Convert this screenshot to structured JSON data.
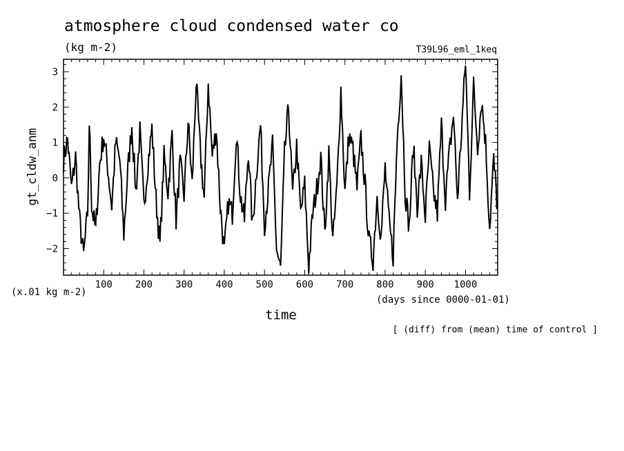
{
  "chart_data": {
    "type": "line",
    "title": "atmosphere cloud condensed water co",
    "units_label": "(kg m-2)",
    "run_label": "T39L96_eml_1keq",
    "xlabel": "time",
    "ylabel": "gt_cldw_anm",
    "y_scale_label": "(x.01 kg m-2)",
    "x_units_label": "(days since 0000-01-01)",
    "note": "[ (diff) from (mean) time of control ]",
    "xlim": [
      0,
      1080
    ],
    "ylim": [
      -2.75,
      3.35
    ],
    "x_ticks": [
      100,
      200,
      300,
      400,
      500,
      600,
      700,
      800,
      900,
      1000
    ],
    "y_ticks": [
      -2,
      -1,
      0,
      1,
      2,
      3
    ],
    "grid": false,
    "series": [
      {
        "name": "",
        "x": [
          0,
          10,
          20,
          30,
          40,
          50,
          60,
          65,
          70,
          80,
          90,
          100,
          110,
          120,
          130,
          140,
          150,
          160,
          170,
          180,
          190,
          200,
          210,
          220,
          230,
          240,
          250,
          260,
          270,
          280,
          290,
          300,
          310,
          320,
          330,
          340,
          350,
          360,
          370,
          380,
          390,
          400,
          410,
          420,
          430,
          440,
          450,
          460,
          470,
          480,
          490,
          500,
          510,
          520,
          530,
          540,
          550,
          560,
          570,
          580,
          590,
          600,
          610,
          620,
          630,
          640,
          650,
          660,
          670,
          680,
          690,
          700,
          710,
          720,
          730,
          740,
          750,
          760,
          770,
          780,
          790,
          800,
          810,
          820,
          830,
          840,
          850,
          860,
          870,
          880,
          890,
          900,
          910,
          920,
          930,
          940,
          950,
          960,
          970,
          980,
          990,
          1000,
          1010,
          1020,
          1030,
          1040,
          1050,
          1060,
          1070,
          1080
        ],
        "values": [
          0.5,
          1.1,
          -0.3,
          0.6,
          -1.2,
          -2.2,
          -1.0,
          1.8,
          -0.8,
          -1.5,
          0.4,
          1.2,
          0.3,
          -0.8,
          1.0,
          0.5,
          -1.6,
          0.2,
          1.5,
          -0.4,
          1.3,
          -0.8,
          0.4,
          1.4,
          -0.6,
          -1.9,
          0.6,
          -0.4,
          1.2,
          -1.2,
          0.4,
          -0.5,
          1.6,
          -0.2,
          2.7,
          0.8,
          -0.6,
          2.7,
          0.6,
          1.4,
          -0.8,
          -2.1,
          -0.7,
          -1.0,
          1.3,
          -0.5,
          -1.2,
          0.8,
          -1.4,
          0.2,
          1.5,
          -1.3,
          -0.3,
          0.9,
          -2.0,
          -2.6,
          0.7,
          2.0,
          -0.5,
          0.9,
          -1.0,
          -0.2,
          -2.5,
          -1.0,
          -0.3,
          0.6,
          -1.6,
          0.7,
          -1.8,
          -0.3,
          2.5,
          -0.4,
          1.2,
          0.8,
          -0.3,
          1.1,
          -0.2,
          -1.8,
          -2.3,
          -0.5,
          -1.7,
          0.3,
          -1.3,
          -2.2,
          1.1,
          3.0,
          -0.4,
          -1.4,
          0.9,
          -0.8,
          0.4,
          -1.1,
          0.8,
          -0.4,
          -1.0,
          1.5,
          -0.6,
          0.7,
          1.8,
          -0.6,
          1.3,
          3.3,
          -0.4,
          2.6,
          0.9,
          2.2,
          1.0,
          -1.4,
          0.5,
          -0.9
        ]
      }
    ]
  }
}
